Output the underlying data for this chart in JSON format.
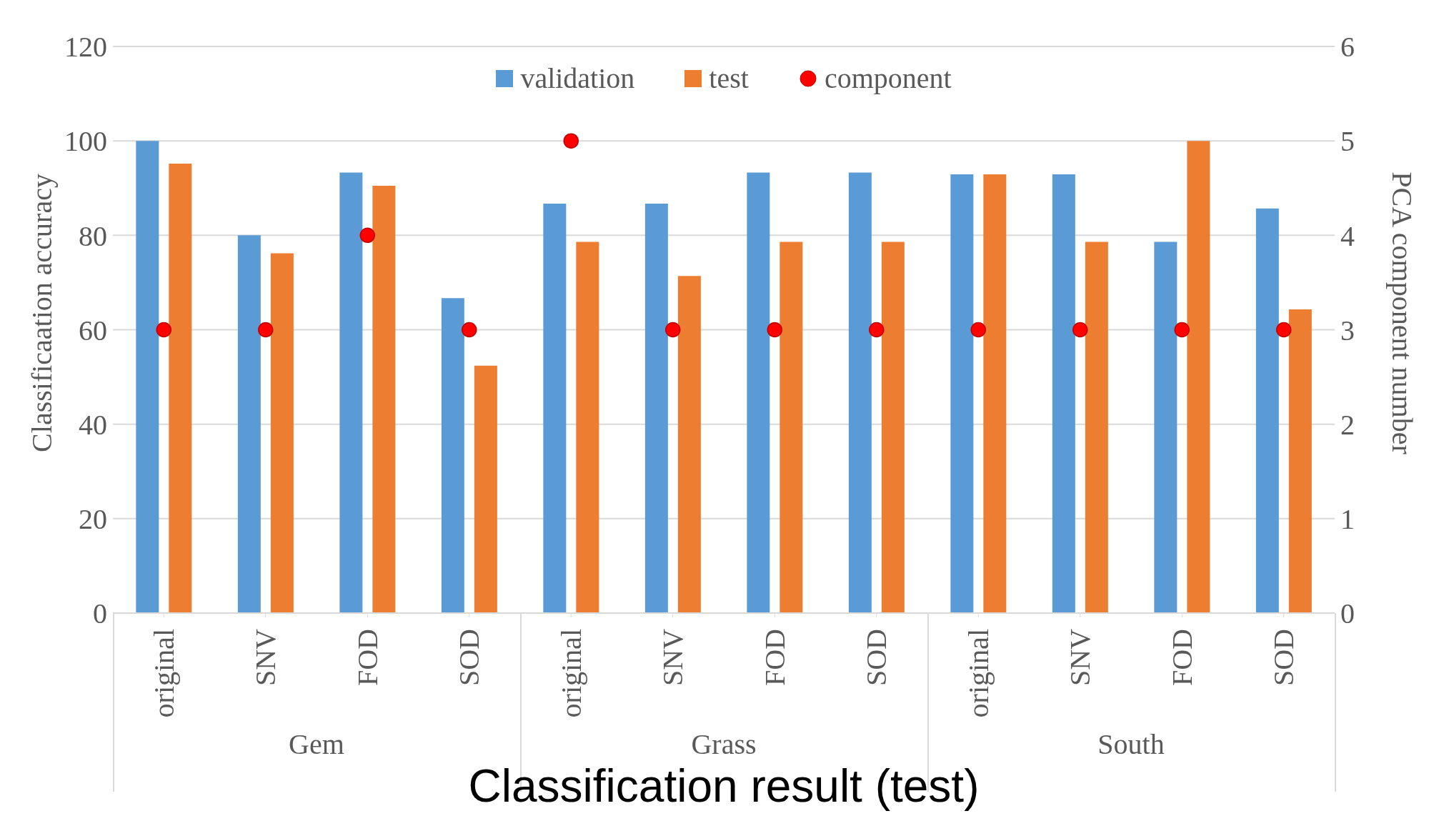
{
  "chart_data": {
    "type": "bar",
    "title": "Classification result (test)",
    "ylabel": "Classificaation accuracy",
    "y2label": "PCA component number",
    "categories": [
      "original",
      "SNV",
      "FOD",
      "SOD",
      "original",
      "SNV",
      "FOD",
      "SOD",
      "original",
      "SNV",
      "FOD",
      "SOD"
    ],
    "annotations": [
      "Gem",
      "Grass",
      "South"
    ],
    "series": [
      {
        "name": "validation",
        "color": "#5b9bd5",
        "values": [
          100,
          80,
          93.3,
          66.7,
          86.7,
          86.7,
          93.3,
          93.3,
          92.9,
          92.9,
          78.6,
          85.7
        ]
      },
      {
        "name": "test",
        "color": "#ed7d31",
        "values": [
          95.2,
          76.2,
          90.5,
          52.4,
          78.6,
          71.4,
          78.6,
          78.6,
          92.9,
          78.6,
          100,
          64.3
        ]
      },
      {
        "name": "component",
        "type": "scatter",
        "axis": "y2",
        "color": "#ff0000",
        "marker": "circle",
        "values": [
          3,
          3,
          4,
          3,
          5,
          3,
          3,
          3,
          3,
          3,
          3,
          3
        ]
      }
    ],
    "ylim": [
      0,
      120
    ],
    "yticks": [
      0,
      20,
      40,
      60,
      80,
      100,
      120
    ],
    "y2lim": [
      0,
      6
    ],
    "y2ticks": [
      0,
      1,
      2,
      3,
      4,
      5,
      6
    ],
    "grid": "y",
    "legend": "top"
  }
}
